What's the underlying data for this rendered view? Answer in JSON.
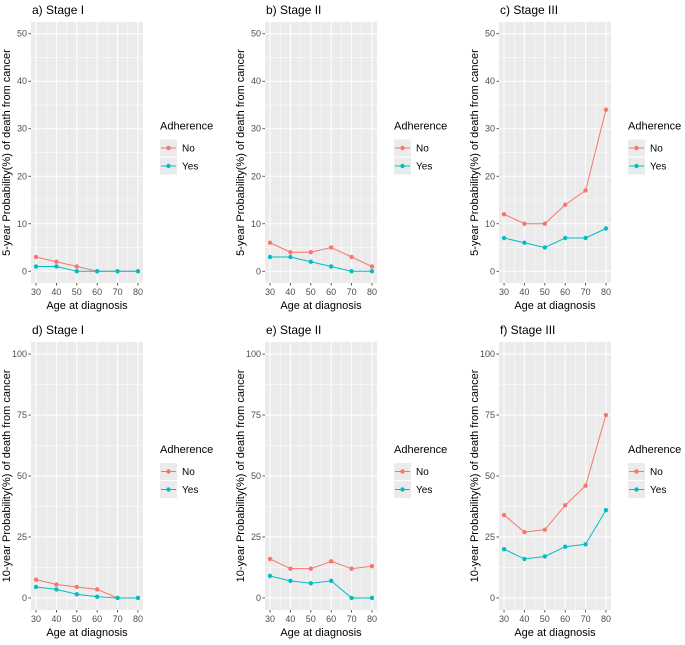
{
  "colors": {
    "No": "#F8766D",
    "Yes": "#00BFC4",
    "panel": "#EBEBEB",
    "grid": "#FFFFFF"
  },
  "legend": {
    "title": "Adherence",
    "items": [
      "No",
      "Yes"
    ]
  },
  "chart_data": [
    {
      "type": "line",
      "title": "a) Stage I",
      "xlabel": "Age at diagnosis",
      "ylabel": "5-year Probability(%) of death from cancer",
      "x": [
        30,
        40,
        50,
        60,
        70,
        80
      ],
      "ylim": [
        0,
        50
      ],
      "yticks": [
        0,
        10,
        20,
        30,
        40,
        50
      ],
      "series": [
        {
          "name": "No",
          "values": [
            3,
            2,
            1,
            0,
            0,
            0
          ]
        },
        {
          "name": "Yes",
          "values": [
            1,
            1,
            0,
            0,
            0,
            0
          ]
        }
      ]
    },
    {
      "type": "line",
      "title": "b) Stage II",
      "xlabel": "Age at diagnosis",
      "ylabel": "5-year Probability(%) of death from cancer",
      "x": [
        30,
        40,
        50,
        60,
        70,
        80
      ],
      "ylim": [
        0,
        50
      ],
      "yticks": [
        0,
        10,
        20,
        30,
        40,
        50
      ],
      "series": [
        {
          "name": "No",
          "values": [
            6,
            4,
            4,
            5,
            3,
            1
          ]
        },
        {
          "name": "Yes",
          "values": [
            3,
            3,
            2,
            1,
            0,
            0
          ]
        }
      ]
    },
    {
      "type": "line",
      "title": "c) Stage III",
      "xlabel": "Age at diagnosis",
      "ylabel": "5-year Probability(%) of death from cancer",
      "x": [
        30,
        40,
        50,
        60,
        70,
        80
      ],
      "ylim": [
        0,
        50
      ],
      "yticks": [
        0,
        10,
        20,
        30,
        40,
        50
      ],
      "series": [
        {
          "name": "No",
          "values": [
            12,
            10,
            10,
            14,
            17,
            34
          ]
        },
        {
          "name": "Yes",
          "values": [
            7,
            6,
            5,
            7,
            7,
            9
          ]
        }
      ]
    },
    {
      "type": "line",
      "title": "d) Stage I",
      "xlabel": "Age at diagnosis",
      "ylabel": "10-year Probability(%) of death from cancer",
      "x": [
        30,
        40,
        50,
        60,
        70,
        80
      ],
      "ylim": [
        0,
        100
      ],
      "yticks": [
        0,
        25,
        50,
        75,
        100
      ],
      "series": [
        {
          "name": "No",
          "values": [
            7.5,
            5.5,
            4.5,
            3.5,
            0,
            0
          ]
        },
        {
          "name": "Yes",
          "values": [
            4.5,
            3.5,
            1.5,
            0.5,
            0,
            0
          ]
        }
      ]
    },
    {
      "type": "line",
      "title": "e) Stage II",
      "xlabel": "Age at diagnosis",
      "ylabel": "10-year Probability(%) of death from cancer",
      "x": [
        30,
        40,
        50,
        60,
        70,
        80
      ],
      "ylim": [
        0,
        100
      ],
      "yticks": [
        0,
        25,
        50,
        75,
        100
      ],
      "series": [
        {
          "name": "No",
          "values": [
            16,
            12,
            12,
            15,
            12,
            13
          ]
        },
        {
          "name": "Yes",
          "values": [
            9,
            7,
            6,
            7,
            0,
            0
          ]
        }
      ]
    },
    {
      "type": "line",
      "title": "f) Stage III",
      "xlabel": "Age at diagnosis",
      "ylabel": "10-year Probability(%) of death from cancer",
      "x": [
        30,
        40,
        50,
        60,
        70,
        80
      ],
      "ylim": [
        0,
        100
      ],
      "yticks": [
        0,
        25,
        50,
        75,
        100
      ],
      "series": [
        {
          "name": "No",
          "values": [
            34,
            27,
            28,
            38,
            46,
            75
          ]
        },
        {
          "name": "Yes",
          "values": [
            20,
            16,
            17,
            21,
            22,
            36
          ]
        }
      ]
    }
  ]
}
